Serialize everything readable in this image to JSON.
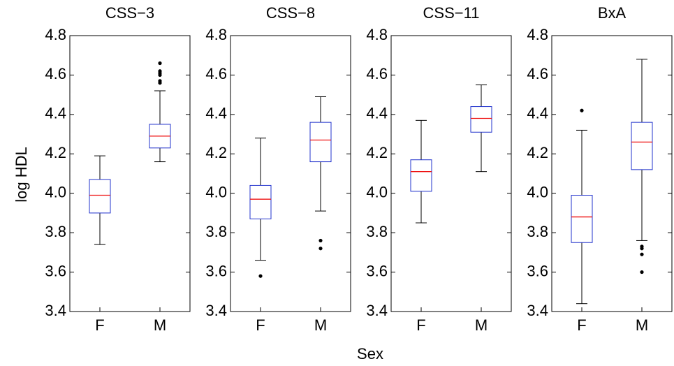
{
  "y_label": "log HDL",
  "x_label": "Sex",
  "chart_data": [
    {
      "type": "box",
      "title": "CSS−3",
      "categories": [
        "F",
        "M"
      ],
      "boxes": [
        {
          "whislo": 3.74,
          "q1": 3.9,
          "med": 3.99,
          "q3": 4.07,
          "whishi": 4.19,
          "fliers": []
        },
        {
          "whislo": 4.16,
          "q1": 4.23,
          "med": 4.29,
          "q3": 4.35,
          "whishi": 4.52,
          "fliers": [
            4.66,
            4.62,
            4.61,
            4.6,
            4.57,
            4.56
          ]
        }
      ],
      "ylim": [
        3.4,
        4.8
      ],
      "yticks": [
        3.4,
        3.6,
        3.8,
        {
          "value": 4,
          "label": "4.0"
        },
        4.2,
        4.4,
        4.6,
        4.8
      ],
      "box_color": "#2233cc",
      "median_color": "#ee1111",
      "whisker_color": "#000000"
    },
    {
      "type": "box",
      "title": "CSS−8",
      "categories": [
        "F",
        "M"
      ],
      "boxes": [
        {
          "whislo": 3.66,
          "q1": 3.87,
          "med": 3.97,
          "q3": 4.04,
          "whishi": 4.28,
          "fliers": [
            3.58
          ]
        },
        {
          "whislo": 3.91,
          "q1": 4.16,
          "med": 4.27,
          "q3": 4.36,
          "whishi": 4.49,
          "fliers": [
            3.76,
            3.72
          ]
        }
      ],
      "ylim": [
        3.4,
        4.8
      ],
      "yticks": [
        3.4,
        3.6,
        3.8,
        {
          "value": 4,
          "label": "4.0"
        },
        4.2,
        4.4,
        4.6,
        4.8
      ],
      "box_color": "#2233cc",
      "median_color": "#ee1111",
      "whisker_color": "#000000"
    },
    {
      "type": "box",
      "title": "CSS−11",
      "categories": [
        "F",
        "M"
      ],
      "boxes": [
        {
          "whislo": 3.85,
          "q1": 4.01,
          "med": 4.11,
          "q3": 4.17,
          "whishi": 4.37,
          "fliers": []
        },
        {
          "whislo": 4.11,
          "q1": 4.31,
          "med": 4.38,
          "q3": 4.44,
          "whishi": 4.55,
          "fliers": []
        }
      ],
      "ylim": [
        3.4,
        4.8
      ],
      "yticks": [
        3.4,
        3.6,
        3.8,
        {
          "value": 4,
          "label": "4.0"
        },
        4.2,
        4.4,
        4.6,
        4.8
      ],
      "box_color": "#2233cc",
      "median_color": "#ee1111",
      "whisker_color": "#000000"
    },
    {
      "type": "box",
      "title": "BxA",
      "categories": [
        "F",
        "M"
      ],
      "boxes": [
        {
          "whislo": 3.44,
          "q1": 3.75,
          "med": 3.88,
          "q3": 3.99,
          "whishi": 4.32,
          "fliers": [
            4.42
          ]
        },
        {
          "whislo": 3.76,
          "q1": 4.12,
          "med": 4.26,
          "q3": 4.36,
          "whishi": 4.68,
          "fliers": [
            3.73,
            3.72,
            3.69,
            3.6
          ]
        }
      ],
      "ylim": [
        3.4,
        4.8
      ],
      "yticks": [
        3.4,
        3.6,
        3.8,
        {
          "value": 4,
          "label": "4.0"
        },
        4.2,
        4.4,
        4.6,
        4.8
      ],
      "box_color": "#2233cc",
      "median_color": "#ee1111",
      "whisker_color": "#000000"
    }
  ]
}
